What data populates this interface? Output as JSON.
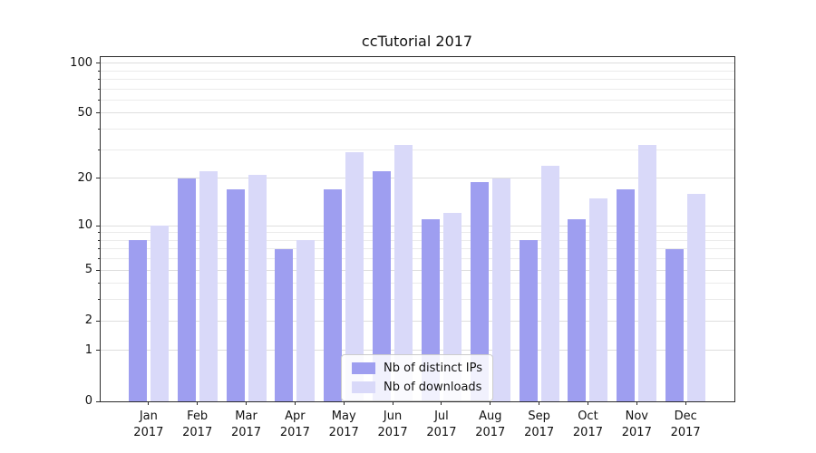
{
  "chart_data": {
    "type": "bar",
    "title": "ccTutorial 2017",
    "x_categories_month": [
      "Jan",
      "Feb",
      "Mar",
      "Apr",
      "May",
      "Jun",
      "Jul",
      "Aug",
      "Sep",
      "Oct",
      "Nov",
      "Dec"
    ],
    "x_categories_year": "2017",
    "series": [
      {
        "name": "Nb of distinct IPs",
        "color": "#9e9ef0",
        "values": [
          8,
          20,
          17,
          7,
          17,
          22,
          11,
          19,
          8,
          11,
          17,
          7
        ]
      },
      {
        "name": "Nb of downloads",
        "color": "#d9d9f9",
        "values": [
          10,
          22,
          21,
          8,
          29,
          32,
          12,
          20,
          24,
          15,
          32,
          16
        ]
      }
    ],
    "y_axis": {
      "scale": "log1p",
      "major_ticks": [
        0,
        1,
        2,
        5,
        10,
        20,
        50,
        100
      ],
      "minor_ticks": [
        3,
        4,
        6,
        7,
        8,
        9,
        30,
        40,
        60,
        70,
        80,
        90
      ],
      "max": 110
    },
    "grid": true,
    "legend_position": "lower center"
  },
  "colors": {
    "grid_major": "#dedede",
    "grid_minor": "#ebebeb",
    "spine": "#2b2b2b",
    "background": "#ffffff"
  }
}
